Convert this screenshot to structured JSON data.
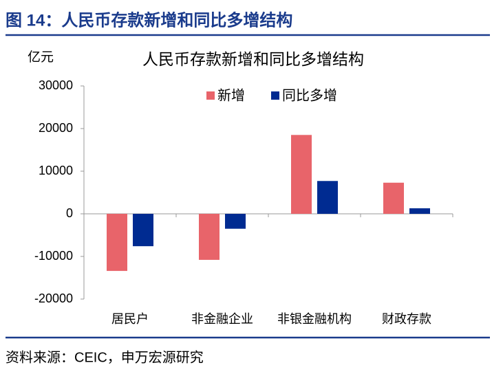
{
  "header": {
    "title": "图 14：人民币存款新增和同比多增结构"
  },
  "chart_data": {
    "type": "bar",
    "title": "人民币存款新增和同比多增结构",
    "y_label": "亿元",
    "categories": [
      "居民户",
      "非金融企业",
      "非银金融机构",
      "财政存款"
    ],
    "series": [
      {
        "name": "新增",
        "color": "#e8646a",
        "values": [
          -13400,
          -10800,
          18500,
          7300
        ]
      },
      {
        "name": "同比多增",
        "color": "#002b91",
        "values": [
          -7600,
          -3500,
          7700,
          1300
        ]
      }
    ],
    "ylim": [
      -20000,
      30000
    ],
    "yticks": [
      -20000,
      -10000,
      0,
      10000,
      20000,
      30000
    ],
    "grid": false,
    "legend": "top"
  },
  "footer": {
    "source": "资料来源：CEIC，申万宏源研究"
  }
}
